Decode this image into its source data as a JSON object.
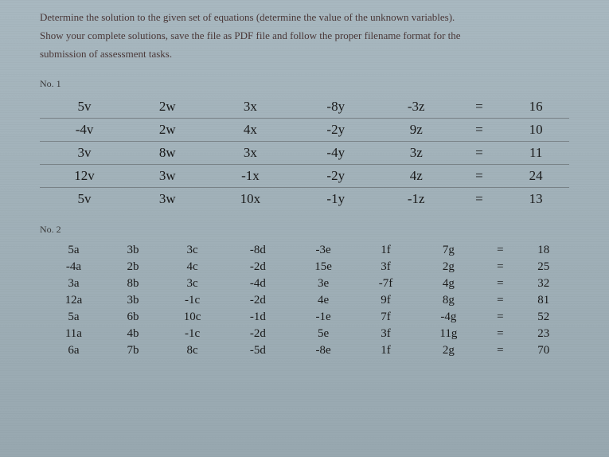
{
  "instructions": {
    "line1": "Determine the solution to the given set of equations (determine the value of the unknown variables).",
    "line2": "Show your complete solutions, save the file as PDF file and follow the proper filename format for the",
    "line3": "submission of assessment tasks."
  },
  "problem1": {
    "label": "No. 1",
    "rows": [
      [
        "5v",
        "2w",
        "3x",
        "-8y",
        "-3z",
        "=",
        "16"
      ],
      [
        "-4v",
        "2w",
        "4x",
        "-2y",
        "9z",
        "=",
        "10"
      ],
      [
        "3v",
        "8w",
        "3x",
        "-4y",
        "3z",
        "=",
        "11"
      ],
      [
        "12v",
        "3w",
        "-1x",
        "-2y",
        "4z",
        "=",
        "24"
      ],
      [
        "5v",
        "3w",
        "10x",
        "-1y",
        "-1z",
        "=",
        "13"
      ]
    ]
  },
  "problem2": {
    "label": "No. 2",
    "rows": [
      [
        "5a",
        "3b",
        "3c",
        "-8d",
        "-3e",
        "1f",
        "7g",
        "=",
        "18"
      ],
      [
        "-4a",
        "2b",
        "4c",
        "-2d",
        "15e",
        "3f",
        "2g",
        "=",
        "25"
      ],
      [
        "3a",
        "8b",
        "3c",
        "-4d",
        "3e",
        "-7f",
        "4g",
        "=",
        "32"
      ],
      [
        "12a",
        "3b",
        "-1c",
        "-2d",
        "4e",
        "9f",
        "8g",
        "=",
        "81"
      ],
      [
        "5a",
        "6b",
        "10c",
        "-1d",
        "-1e",
        "7f",
        "-4g",
        "=",
        "52"
      ],
      [
        "11a",
        "4b",
        "-1c",
        "-2d",
        "5e",
        "3f",
        "11g",
        "=",
        "23"
      ],
      [
        "6a",
        "7b",
        "8c",
        "-5d",
        "-8e",
        "1f",
        "2g",
        "=",
        "70"
      ]
    ]
  },
  "styling": {
    "background_gradient_start": "#a8b8c0",
    "background_gradient_end": "#98a8b0",
    "text_color": "#2a2a2a",
    "instruction_color": "#4a3838",
    "border_color": "rgba(60,60,60,0.4)",
    "font_family_main": "Georgia, serif",
    "problem1_font_size": 17,
    "problem2_font_size": 15,
    "instruction_font_size": 13
  }
}
